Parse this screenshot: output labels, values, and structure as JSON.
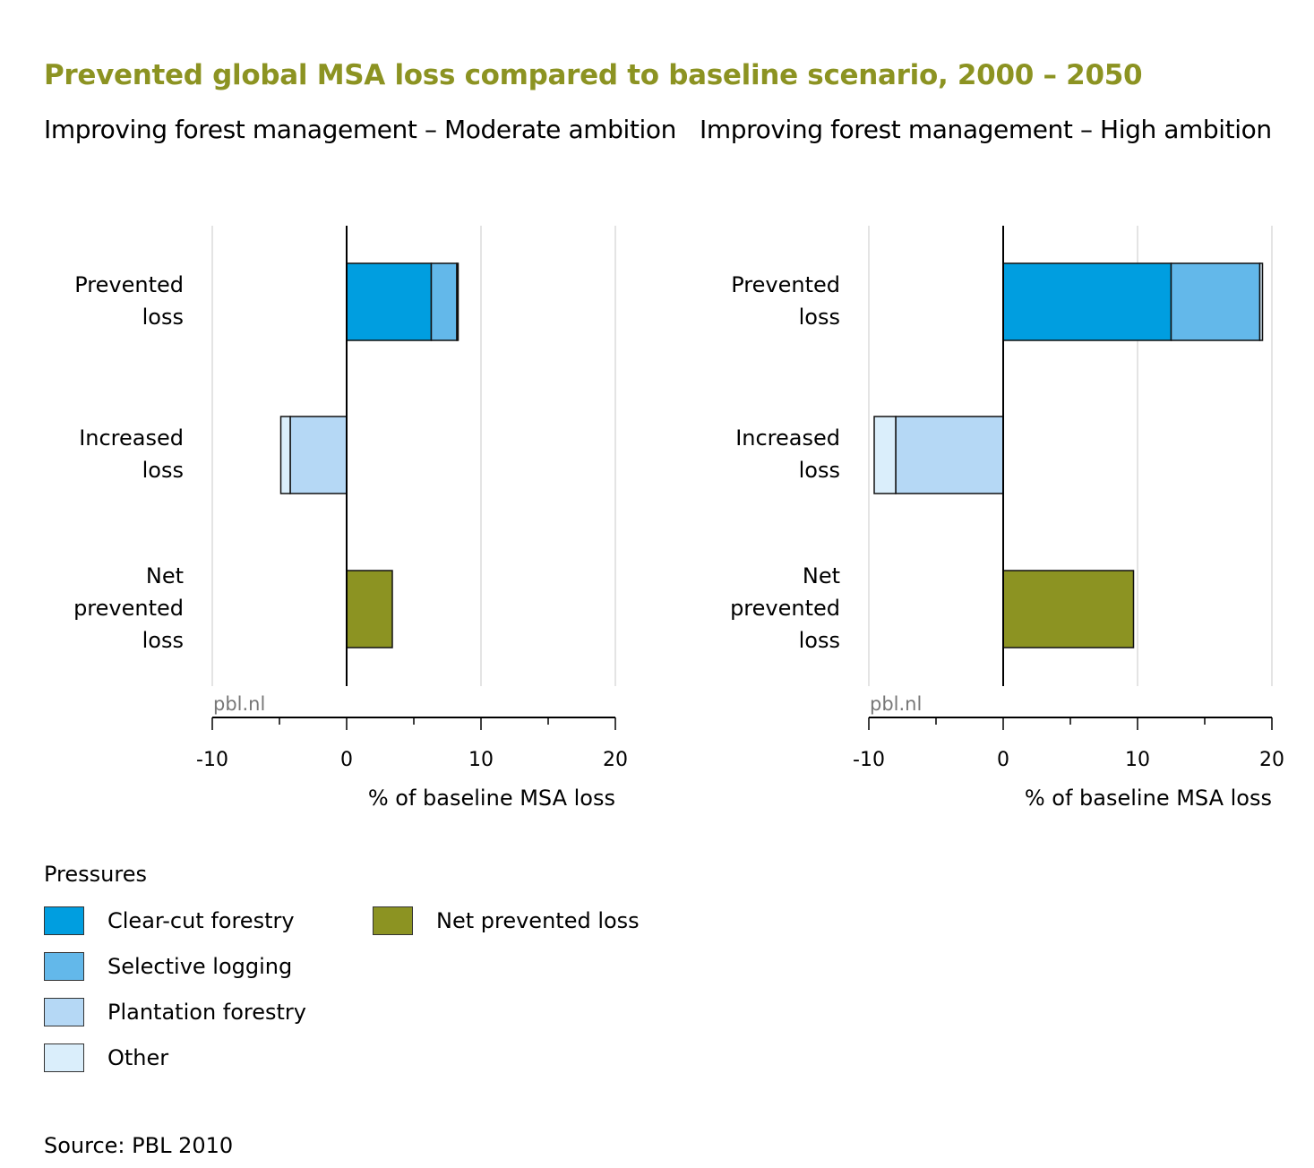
{
  "title": "Prevented global MSA loss compared to baseline scenario, 2000 – 2050",
  "source": "Source: PBL 2010",
  "watermark": "pbl.nl",
  "legend": {
    "title": "Pressures",
    "items": [
      {
        "label": "Clear-cut forestry",
        "color": "#009ee0"
      },
      {
        "label": "Selective logging",
        "color": "#63b8ea"
      },
      {
        "label": "Plantation forestry",
        "color": "#b5d8f5"
      },
      {
        "label": "Other",
        "color": "#daeefb"
      },
      {
        "label": "Net prevented loss",
        "color": "#8c9322"
      }
    ]
  },
  "chart_data": [
    {
      "type": "bar",
      "orientation": "horizontal",
      "stacked": true,
      "subtitle": "Improving forest management – Moderate ambition",
      "xlabel": "% of baseline MSA loss",
      "xlim": [
        -10,
        20
      ],
      "xticks": [
        "-10",
        "0",
        "10",
        "20"
      ],
      "grid": true,
      "categories": [
        [
          "Prevented",
          "loss"
        ],
        [
          "Increased",
          "loss"
        ],
        [
          "Net",
          "prevented",
          "loss"
        ]
      ],
      "series": [
        {
          "name": "Clear-cut forestry",
          "color": "#009ee0",
          "values": [
            6.3,
            0,
            0
          ]
        },
        {
          "name": "Selective logging",
          "color": "#63b8ea",
          "values": [
            1.9,
            0,
            0
          ]
        },
        {
          "name": "Other",
          "color": "#daeefb",
          "values": [
            0.1,
            0,
            0
          ]
        },
        {
          "name": "Plantation forestry",
          "color": "#b5d8f5",
          "values": [
            0,
            -4.2,
            0
          ]
        },
        {
          "name": "Other",
          "color": "#daeefb",
          "values": [
            0,
            -0.7,
            0
          ]
        },
        {
          "name": "Net prevented loss",
          "color": "#8c9322",
          "values": [
            0,
            0,
            3.4
          ]
        }
      ]
    },
    {
      "type": "bar",
      "orientation": "horizontal",
      "stacked": true,
      "subtitle": "Improving forest management – High ambition",
      "xlabel": "% of baseline MSA loss",
      "xlim": [
        -10,
        20
      ],
      "xticks": [
        "-10",
        "0",
        "10",
        "20"
      ],
      "grid": true,
      "categories": [
        [
          "Prevented",
          "loss"
        ],
        [
          "Increased",
          "loss"
        ],
        [
          "Net",
          "prevented",
          "loss"
        ]
      ],
      "series": [
        {
          "name": "Clear-cut forestry",
          "color": "#009ee0",
          "values": [
            12.5,
            0,
            0
          ]
        },
        {
          "name": "Selective logging",
          "color": "#63b8ea",
          "values": [
            6.6,
            0,
            0
          ]
        },
        {
          "name": "Other",
          "color": "#daeefb",
          "values": [
            0.2,
            0,
            0
          ]
        },
        {
          "name": "Plantation forestry",
          "color": "#b5d8f5",
          "values": [
            0,
            -8.0,
            0
          ]
        },
        {
          "name": "Other",
          "color": "#daeefb",
          "values": [
            0,
            -1.6,
            0
          ]
        },
        {
          "name": "Net prevented loss",
          "color": "#8c9322",
          "values": [
            0,
            0,
            9.7
          ]
        }
      ]
    }
  ]
}
